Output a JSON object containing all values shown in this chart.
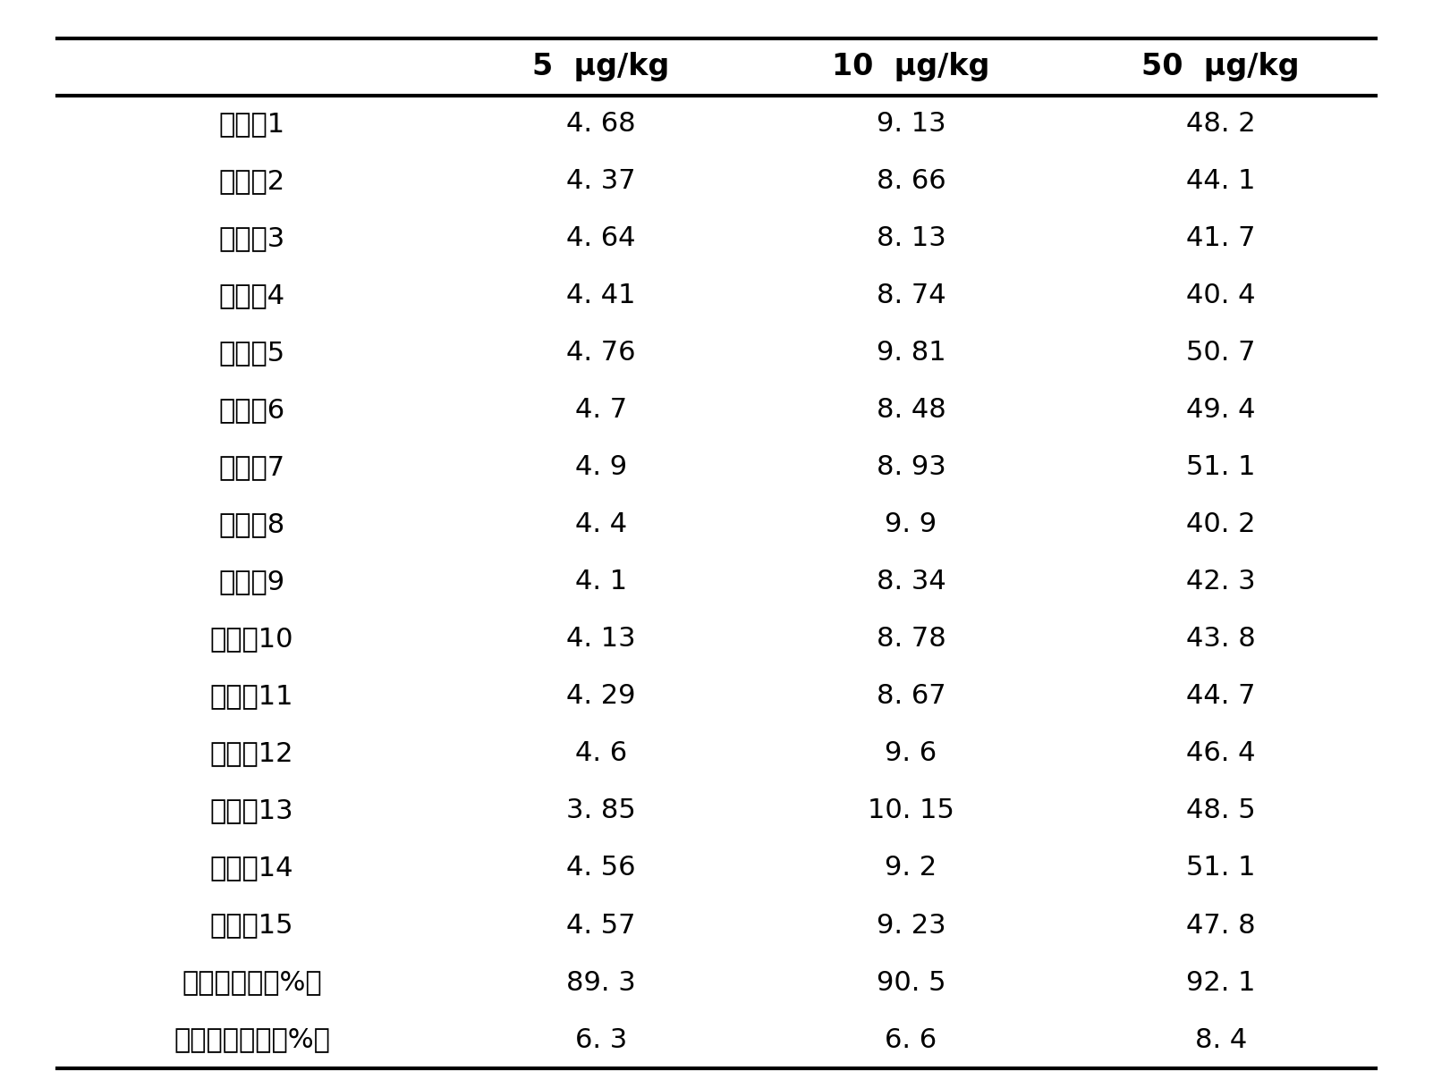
{
  "col_headers": [
    "",
    "5  μg/kg",
    "10  μg/kg",
    "50  μg/kg"
  ],
  "rows": [
    [
      "测定倷1",
      "4. 68",
      "9. 13",
      "48. 2"
    ],
    [
      "测定倷2",
      "4. 37",
      "8. 66",
      "44. 1"
    ],
    [
      "测定倷3",
      "4. 64",
      "8. 13",
      "41. 7"
    ],
    [
      "测定倷4",
      "4. 41",
      "8. 74",
      "40. 4"
    ],
    [
      "测定倷5",
      "4. 76",
      "9. 81",
      "50. 7"
    ],
    [
      "测定倷6",
      "4. 7",
      "8. 48",
      "49. 4"
    ],
    [
      "测定倷7",
      "4. 9",
      "8. 93",
      "51. 1"
    ],
    [
      "测定倷8",
      "4. 4",
      "9. 9",
      "40. 2"
    ],
    [
      "测定倷9",
      "4. 1",
      "8. 34",
      "42. 3"
    ],
    [
      "测定倷10",
      "4. 13",
      "8. 78",
      "43. 8"
    ],
    [
      "测定倷11",
      "4. 29",
      "8. 67",
      "44. 7"
    ],
    [
      "测定倷12",
      "4. 6",
      "9. 6",
      "46. 4"
    ],
    [
      "测定倷13",
      "3. 85",
      "10. 15",
      "48. 5"
    ],
    [
      "测定倷14",
      "4. 56",
      "9. 2",
      "51. 1"
    ],
    [
      "测定倷15",
      "4. 57",
      "9. 23",
      "47. 8"
    ],
    [
      "平均回收率（%）",
      "89. 3",
      "90. 5",
      "92. 1"
    ],
    [
      "相对标准偏差（%）",
      "6. 3",
      "6. 6",
      "8. 4"
    ]
  ],
  "figsize": [
    16.02,
    12.17
  ],
  "dpi": 100,
  "font_size_header": 24,
  "font_size_body": 22,
  "bg_color": "#ffffff",
  "text_color": "#000000",
  "line_color": "#000000"
}
